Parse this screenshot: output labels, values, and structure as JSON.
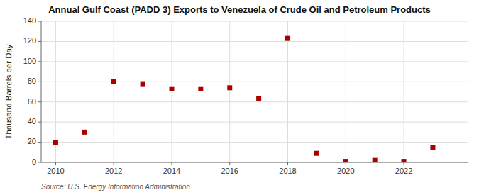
{
  "chart_data": {
    "type": "scatter",
    "title": "Annual Gulf Coast (PADD 3) Exports to Venezuela of Crude Oil and Petroleum Products",
    "y_label": "Thousand Barrels per Day",
    "source": "Source: U.S. Energy Information Administration",
    "x": [
      2010,
      2011,
      2012,
      2013,
      2014,
      2015,
      2016,
      2017,
      2018,
      2019,
      2020,
      2021,
      2022,
      2023
    ],
    "values": [
      20,
      30,
      80,
      78,
      73,
      73,
      74,
      63,
      123,
      9,
      1,
      2,
      1,
      15
    ],
    "color": "#aa0000",
    "marker": "square",
    "xlim": [
      2009.5,
      2024.2
    ],
    "ylim": [
      0,
      140
    ],
    "xticks": [
      2010,
      2012,
      2014,
      2016,
      2018,
      2020,
      2022
    ],
    "yticks": [
      0,
      20,
      40,
      60,
      80,
      100,
      120,
      140
    ],
    "grid": true
  }
}
